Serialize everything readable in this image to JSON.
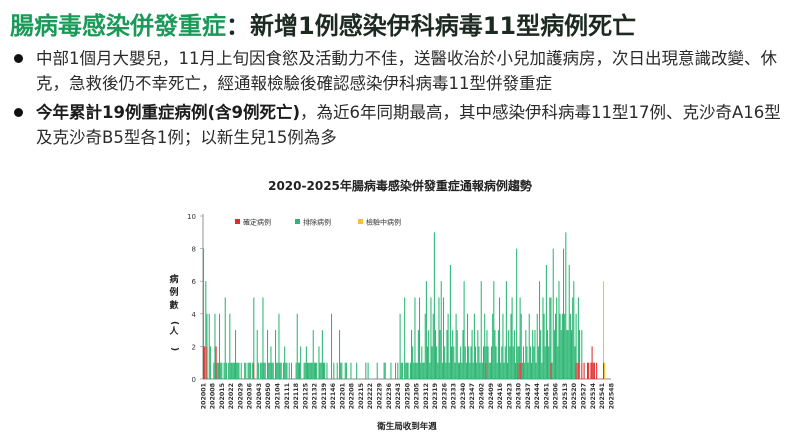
{
  "header": {
    "title_main": "腸病毒感染併發重症",
    "title_rest": "：新增1例感染伊科病毒11型病例死亡"
  },
  "bullets": [
    {
      "bold": "",
      "text": "中部1個月大嬰兒，11月上旬因食慾及活動力不佳，送醫收治於小兒加護病房，次日出現意識改變、休克，急救後仍不幸死亡，經通報檢驗後確認感染伊科病毒11型併發重症"
    },
    {
      "bold": "今年累計19例重症病例(含9例死亡)",
      "text": "，為近6年同期最高，其中感染伊科病毒11型17例、克沙奇A16型及克沙奇B5型各1例；以新生兒15例為多"
    }
  ],
  "colors": {
    "confirmed": "#e02b2b",
    "excluded": "#2bb673",
    "pending": "#f5c518",
    "title_green": "#1a9a58"
  },
  "chart_data": {
    "type": "bar",
    "stacked": true,
    "title": "2020-2025年腸病毒感染併發重症通報病例趨勢",
    "xlabel": "衛生局收到年週",
    "ylabel": "病例數(人)",
    "ylim": [
      0,
      10
    ],
    "yticks": [
      0,
      2,
      4,
      6,
      8,
      10
    ],
    "legend_position": "top-left",
    "x_tick_labels": [
      "202001",
      "202008",
      "202015",
      "202022",
      "202029",
      "202036",
      "202043",
      "202050",
      "202104",
      "202111",
      "202118",
      "202125",
      "202132",
      "202139",
      "202146",
      "202201",
      "202208",
      "202215",
      "202222",
      "202229",
      "202236",
      "202243",
      "202250",
      "202305",
      "202312",
      "202319",
      "202326",
      "202333",
      "202340",
      "202347",
      "202402",
      "202409",
      "202416",
      "202423",
      "202430",
      "202437",
      "202444",
      "202451",
      "202506",
      "202513",
      "202520",
      "202527",
      "202534",
      "202541",
      "202548"
    ],
    "series": [
      {
        "name": "確定病例",
        "color": "#e02b2b",
        "values": [
          2,
          2,
          0,
          2,
          0,
          0,
          0,
          0,
          0,
          0,
          0,
          2,
          0,
          0,
          0,
          0,
          0,
          0,
          0,
          0,
          0,
          0,
          0,
          0,
          0,
          0,
          0,
          0,
          0,
          0,
          0,
          0,
          0,
          0,
          0,
          0,
          0,
          0,
          0,
          0,
          0,
          0,
          0,
          0,
          1,
          0,
          0,
          0,
          0,
          0,
          0,
          0,
          0,
          0,
          0,
          0,
          0,
          0,
          0,
          0,
          0,
          0,
          0,
          0,
          0,
          0,
          0,
          0,
          0,
          0,
          0,
          0,
          0,
          0,
          0,
          0,
          0,
          0,
          0,
          0,
          0,
          0,
          0,
          0,
          0,
          0,
          0,
          0,
          0,
          0,
          0,
          0,
          0,
          0,
          0,
          0,
          0,
          0,
          0,
          0,
          0,
          0,
          0,
          0,
          0,
          0,
          0,
          0,
          0,
          0,
          0,
          0,
          0,
          0,
          0,
          0,
          0,
          0,
          0,
          0,
          0,
          0,
          0,
          0,
          0,
          0,
          0,
          0,
          0,
          0,
          0,
          0,
          0,
          0,
          0,
          0,
          0,
          0,
          0,
          0,
          0,
          0,
          0,
          0,
          0,
          0,
          0,
          0,
          0,
          0,
          0,
          0,
          0,
          0,
          0,
          0,
          0,
          0,
          0,
          0,
          0,
          0,
          0,
          0,
          0,
          0,
          0,
          0,
          0,
          0,
          0,
          0,
          0,
          0,
          0,
          0,
          0,
          0,
          0,
          0,
          0,
          0,
          0,
          0,
          0,
          0,
          0,
          0,
          0,
          0,
          0,
          0,
          0,
          0,
          0,
          0,
          0,
          0,
          0,
          0,
          0,
          0,
          0,
          0,
          0,
          0,
          0,
          0,
          0,
          0,
          0,
          0,
          0,
          0,
          0,
          0,
          0,
          0,
          0,
          0,
          0,
          0,
          0,
          0,
          0,
          0,
          0,
          0,
          0,
          0,
          0,
          0,
          0,
          0,
          0,
          0,
          0,
          0,
          0,
          0,
          0,
          0,
          0,
          0,
          0,
          0,
          0,
          1,
          0,
          0,
          0,
          0,
          0,
          0,
          0,
          0,
          0,
          0,
          0,
          0,
          0,
          0,
          0,
          0,
          0,
          0,
          0,
          0,
          0,
          0,
          0,
          0,
          0,
          0,
          0,
          1,
          0,
          1,
          1,
          0,
          0,
          0,
          0,
          0,
          0,
          0,
          0,
          0,
          0,
          0,
          0,
          0,
          0,
          0,
          0,
          0,
          0,
          0,
          0,
          0,
          0,
          0,
          0,
          0,
          1,
          0,
          0,
          0,
          0,
          0,
          0,
          0,
          0,
          0,
          0,
          0,
          0,
          0,
          0,
          0,
          0,
          0,
          0,
          0,
          0,
          0,
          1,
          0,
          1,
          0,
          0,
          1,
          0,
          1,
          0,
          0,
          1,
          1,
          0,
          1,
          2,
          1,
          1,
          0,
          1,
          0,
          0,
          0,
          0,
          0,
          1,
          0,
          0,
          0,
          0,
          0,
          0
        ]
      },
      {
        "name": "排除病例",
        "color": "#2bb673",
        "values": [
          6,
          0,
          6,
          2,
          0,
          4,
          2,
          0,
          0,
          1,
          4,
          0,
          1,
          1,
          4,
          1,
          1,
          0,
          1,
          5,
          1,
          0,
          1,
          4,
          1,
          1,
          1,
          1,
          3,
          1,
          1,
          1,
          0,
          1,
          0,
          0,
          1,
          1,
          0,
          1,
          1,
          1,
          0,
          1,
          4,
          0,
          0,
          3,
          1,
          0,
          1,
          1,
          5,
          1,
          1,
          0,
          3,
          1,
          1,
          2,
          1,
          1,
          0,
          3,
          1,
          1,
          4,
          1,
          1,
          0,
          1,
          2,
          1,
          1,
          0,
          1,
          0,
          1,
          0,
          0,
          0,
          1,
          4,
          1,
          1,
          2,
          0,
          0,
          1,
          1,
          2,
          1,
          1,
          1,
          1,
          1,
          3,
          1,
          1,
          1,
          0,
          2,
          1,
          1,
          3,
          1,
          1,
          0,
          1,
          0,
          0,
          0,
          4,
          0,
          1,
          0,
          0,
          1,
          0,
          3,
          1,
          1,
          0,
          0,
          1,
          1,
          0,
          0,
          0,
          1,
          0,
          0,
          0,
          0,
          1,
          0,
          0,
          0,
          0,
          0,
          0,
          0,
          1,
          0,
          1,
          0,
          0,
          0,
          0,
          0,
          0,
          0,
          1,
          0,
          0,
          0,
          0,
          0,
          1,
          1,
          0,
          0,
          0,
          0,
          1,
          0,
          0,
          0,
          1,
          0,
          1,
          0,
          4,
          1,
          1,
          0,
          5,
          1,
          1,
          1,
          0,
          1,
          3,
          2,
          1,
          5,
          1,
          1,
          3,
          5,
          1,
          2,
          1,
          1,
          4,
          6,
          2,
          3,
          1,
          5,
          2,
          4,
          9,
          3,
          2,
          1,
          5,
          3,
          6,
          1,
          5,
          2,
          1,
          3,
          4,
          1,
          7,
          2,
          3,
          2,
          1,
          4,
          3,
          1,
          1,
          2,
          1,
          3,
          6,
          2,
          1,
          4,
          2,
          1,
          2,
          3,
          1,
          4,
          2,
          1,
          3,
          2,
          1,
          6,
          1,
          2,
          4,
          1,
          3,
          2,
          1,
          1,
          2,
          4,
          6,
          3,
          2,
          1,
          3,
          5,
          1,
          2,
          4,
          1,
          2,
          6,
          1,
          3,
          2,
          4,
          5,
          2,
          3,
          1,
          8,
          1,
          2,
          4,
          3,
          1,
          2,
          1,
          3,
          2,
          1,
          4,
          2,
          1,
          3,
          2,
          3,
          1,
          4,
          2,
          6,
          3,
          1,
          5,
          4,
          2,
          7,
          3,
          2,
          5,
          4,
          1,
          8,
          3,
          4,
          5,
          2,
          6,
          4,
          3,
          4,
          8,
          4,
          9,
          3,
          3,
          7,
          4,
          3,
          5,
          6,
          2,
          3,
          1,
          4,
          3,
          0,
          2
        ]
      },
      {
        "name": "檢驗中病例",
        "color": "#f5c518",
        "values": [
          0,
          0,
          0,
          0,
          0,
          0,
          0,
          0,
          0,
          0,
          0,
          0,
          0,
          0,
          0,
          0,
          0,
          0,
          0,
          0,
          0,
          0,
          0,
          0,
          0,
          0,
          0,
          0,
          0,
          0,
          0,
          0,
          0,
          0,
          0,
          0,
          0,
          0,
          0,
          0,
          0,
          0,
          0,
          0,
          0,
          0,
          0,
          0,
          0,
          0,
          0,
          0,
          0,
          0,
          0,
          0,
          0,
          0,
          0,
          0,
          0,
          0,
          0,
          0,
          0,
          0,
          0,
          0,
          0,
          0,
          0,
          0,
          0,
          0,
          0,
          0,
          0,
          0,
          0,
          0,
          0,
          0,
          0,
          0,
          0,
          0,
          0,
          0,
          0,
          0,
          0,
          0,
          0,
          0,
          0,
          0,
          0,
          0,
          0,
          0,
          0,
          0,
          0,
          0,
          0,
          0,
          0,
          0,
          0,
          0,
          0,
          0,
          0,
          0,
          0,
          0,
          0,
          0,
          0,
          0,
          0,
          0,
          0,
          0,
          0,
          0,
          0,
          0,
          0,
          0,
          0,
          0,
          0,
          0,
          0,
          0,
          0,
          0,
          0,
          0,
          0,
          0,
          0,
          0,
          0,
          0,
          0,
          0,
          0,
          0,
          0,
          0,
          0,
          0,
          0,
          0,
          0,
          0,
          0,
          0,
          0,
          0,
          0,
          0,
          0,
          0,
          0,
          0,
          0,
          0,
          0,
          0,
          0,
          0,
          0,
          0,
          0,
          0,
          0,
          0,
          0,
          0,
          0,
          0,
          0,
          0,
          0,
          0,
          0,
          0,
          0,
          0,
          0,
          0,
          0,
          0,
          0,
          0,
          0,
          0,
          0,
          0,
          0,
          0,
          0,
          0,
          0,
          0,
          0,
          0,
          0,
          0,
          0,
          0,
          0,
          0,
          0,
          0,
          0,
          0,
          0,
          0,
          0,
          0,
          0,
          0,
          0,
          0,
          0,
          0,
          0,
          0,
          0,
          0,
          0,
          0,
          0,
          0,
          0,
          0,
          0,
          0,
          0,
          0,
          0,
          0,
          0,
          0,
          0,
          0,
          0,
          0,
          0,
          0,
          0,
          0,
          0,
          0,
          0,
          0,
          0,
          0,
          0,
          0,
          0,
          0,
          0,
          0,
          0,
          0,
          0,
          0,
          0,
          0,
          0,
          0,
          0,
          0,
          0,
          0,
          0,
          0,
          0,
          0,
          0,
          0,
          0,
          0,
          0,
          0,
          0,
          0,
          0,
          0,
          0,
          0,
          0,
          0,
          0,
          0,
          0,
          0,
          0,
          0,
          0,
          0,
          0,
          0,
          0,
          0,
          0,
          0,
          0,
          0,
          0,
          0,
          0,
          0,
          0,
          0,
          0,
          0,
          0,
          0,
          0,
          0,
          0,
          0,
          0,
          0,
          0,
          0,
          0,
          0,
          0,
          0,
          0,
          0,
          0,
          0,
          0,
          0,
          0,
          0,
          0,
          0,
          0,
          0,
          0,
          0,
          5,
          1
        ]
      }
    ]
  }
}
